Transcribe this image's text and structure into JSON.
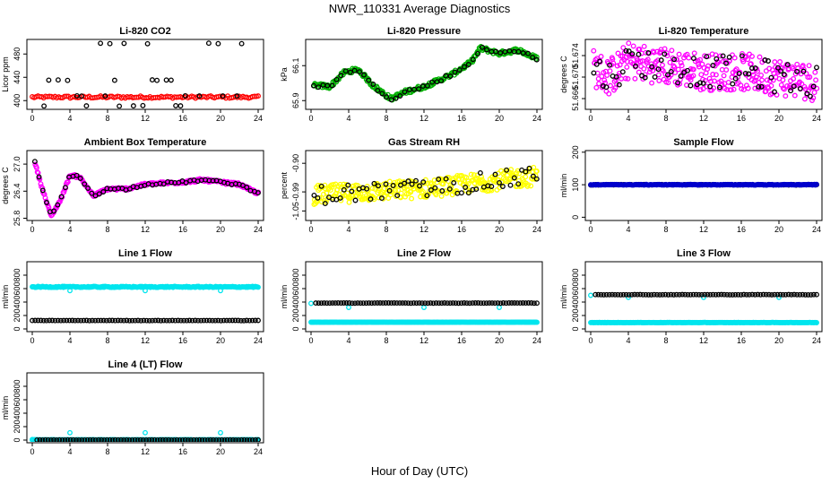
{
  "figure": {
    "title": "NWR_110331  Average Diagnostics",
    "xlabel": "Hour of Day (UTC)"
  },
  "chart_data": [
    {
      "id": "co2",
      "type": "scatter",
      "title": "Li-820 CO2",
      "ylabel": "Licor ppm",
      "xlim": [
        0,
        24
      ],
      "xticks": [
        0,
        4,
        8,
        12,
        16,
        20,
        24
      ],
      "ylim": [
        385,
        505
      ],
      "yticks": [
        400,
        440,
        480
      ],
      "ytick_labels": [
        "400",
        "440",
        "480"
      ],
      "series": [
        {
          "name": "co2-averages",
          "color": "#ff0000",
          "pattern": {
            "kind": "band",
            "from": 0,
            "to": 24,
            "n": 120,
            "center": 406,
            "spread": 2
          }
        },
        {
          "name": "co2-references",
          "color": "#000000",
          "pattern": {
            "kind": "levels",
            "x_step": 0.5,
            "levels": [
              391,
              408,
              435,
              498
            ]
          }
        }
      ]
    },
    {
      "id": "pressure",
      "type": "scatter",
      "title": "Li-820 Pressure",
      "ylabel": "kPa",
      "xlim": [
        0,
        24
      ],
      "xticks": [
        0,
        4,
        8,
        12,
        16,
        20,
        24
      ],
      "ylim": [
        65.85,
        66.25
      ],
      "yticks": [
        65.9,
        66.1
      ],
      "ytick_labels": [
        "65.9",
        "66.1"
      ],
      "series": [
        {
          "name": "pressure-green",
          "color": "#00b000",
          "pattern": {
            "kind": "curve",
            "n": 260,
            "jitter": 0.012,
            "pts": [
              [
                0,
                65.99
              ],
              [
                2,
                65.98
              ],
              [
                3.5,
                66.06
              ],
              [
                5,
                66.08
              ],
              [
                6.5,
                65.99
              ],
              [
                8.5,
                65.91
              ],
              [
                10,
                65.95
              ],
              [
                12,
                65.98
              ],
              [
                15,
                66.05
              ],
              [
                17,
                66.12
              ],
              [
                18,
                66.2
              ],
              [
                20,
                66.17
              ],
              [
                22,
                66.19
              ],
              [
                24,
                66.14
              ]
            ]
          }
        },
        {
          "name": "pressure-black",
          "color": "#000000",
          "pattern": {
            "kind": "curve",
            "n": 50,
            "jitter": 0.01,
            "pts": [
              [
                0,
                65.99
              ],
              [
                2,
                65.98
              ],
              [
                3.5,
                66.06
              ],
              [
                5,
                66.08
              ],
              [
                6.5,
                65.99
              ],
              [
                8.5,
                65.91
              ],
              [
                10,
                65.95
              ],
              [
                12,
                65.98
              ],
              [
                15,
                66.05
              ],
              [
                17,
                66.12
              ],
              [
                18,
                66.2
              ],
              [
                20,
                66.17
              ],
              [
                22,
                66.19
              ],
              [
                24,
                66.14
              ]
            ]
          }
        }
      ]
    },
    {
      "id": "licor-temp",
      "type": "scatter",
      "title": "Li-820 Temperature",
      "ylabel": "degrees C",
      "xlim": [
        0,
        24
      ],
      "xticks": [
        0,
        4,
        8,
        12,
        16,
        20,
        24
      ],
      "ylim": [
        51.664,
        51.677
      ],
      "yticks": [
        51.666,
        51.67,
        51.674
      ],
      "ytick_labels": [
        "51.666",
        "51.670",
        "51.674"
      ],
      "series": [
        {
          "name": "licor-temp-magenta",
          "color": "#ff00ff",
          "pattern": {
            "kind": "curve",
            "n": 330,
            "jitter": 0.0035,
            "pts": [
              [
                0,
                51.672
              ],
              [
                2,
                51.67
              ],
              [
                4,
                51.673
              ],
              [
                8,
                51.672
              ],
              [
                12,
                51.671
              ],
              [
                16,
                51.671
              ],
              [
                20,
                51.67
              ],
              [
                24,
                51.669
              ]
            ]
          }
        },
        {
          "name": "licor-temp-black",
          "color": "#000000",
          "pattern": {
            "kind": "curve",
            "n": 70,
            "jitter": 0.003,
            "pts": [
              [
                0,
                51.672
              ],
              [
                2,
                51.67
              ],
              [
                4,
                51.673
              ],
              [
                8,
                51.672
              ],
              [
                12,
                51.671
              ],
              [
                16,
                51.671
              ],
              [
                20,
                51.67
              ],
              [
                24,
                51.669
              ]
            ]
          }
        }
      ]
    },
    {
      "id": "box-temp",
      "type": "scatter",
      "title": "Ambient Box Temperature",
      "ylabel": "degrees C",
      "xlim": [
        0,
        24
      ],
      "xticks": [
        0,
        4,
        8,
        12,
        16,
        20,
        24
      ],
      "ylim": [
        25.75,
        27.3
      ],
      "yticks": [
        25.8,
        26.4,
        27.0
      ],
      "ytick_labels": [
        "25.8",
        "26.4",
        "27.0"
      ],
      "series": [
        {
          "name": "box-temp-magenta",
          "color": "#ff00ff",
          "pattern": {
            "kind": "curve",
            "n": 280,
            "jitter": 0.03,
            "pts": [
              [
                0,
                27.25
              ],
              [
                1,
                26.5
              ],
              [
                2,
                25.85
              ],
              [
                3,
                26.2
              ],
              [
                4,
                26.75
              ],
              [
                5,
                26.72
              ],
              [
                6.5,
                26.3
              ],
              [
                8,
                26.45
              ],
              [
                10,
                26.45
              ],
              [
                12,
                26.55
              ],
              [
                14,
                26.58
              ],
              [
                16,
                26.6
              ],
              [
                18,
                26.65
              ],
              [
                20,
                26.6
              ],
              [
                22,
                26.55
              ],
              [
                24,
                26.35
              ]
            ]
          }
        },
        {
          "name": "box-temp-black",
          "color": "#000000",
          "pattern": {
            "kind": "curve",
            "n": 60,
            "jitter": 0.025,
            "pts": [
              [
                0,
                27.25
              ],
              [
                1,
                26.5
              ],
              [
                2,
                25.85
              ],
              [
                3,
                26.2
              ],
              [
                4,
                26.75
              ],
              [
                5,
                26.72
              ],
              [
                6.5,
                26.3
              ],
              [
                8,
                26.45
              ],
              [
                10,
                26.45
              ],
              [
                12,
                26.55
              ],
              [
                14,
                26.58
              ],
              [
                16,
                26.6
              ],
              [
                18,
                26.65
              ],
              [
                20,
                26.6
              ],
              [
                22,
                26.55
              ],
              [
                24,
                26.35
              ]
            ]
          }
        }
      ]
    },
    {
      "id": "rh",
      "type": "scatter",
      "title": "Gas Stream RH",
      "ylabel": "percent",
      "xlim": [
        0,
        24
      ],
      "xticks": [
        0,
        4,
        8,
        12,
        16,
        20,
        24
      ],
      "ylim": [
        -1.08,
        -0.86
      ],
      "yticks": [
        -1.05,
        -0.99,
        -0.9
      ],
      "ytick_labels": [
        "-1.05",
        "-0.99",
        "-0.90"
      ],
      "series": [
        {
          "name": "rh-yellow",
          "color": "#ffff00",
          "pattern": {
            "kind": "curve",
            "n": 330,
            "jitter": 0.03,
            "pts": [
              [
                0,
                -1.0
              ],
              [
                6,
                -0.99
              ],
              [
                12,
                -0.98
              ],
              [
                18,
                -0.96
              ],
              [
                24,
                -0.94
              ]
            ]
          }
        },
        {
          "name": "rh-black",
          "color": "#000000",
          "pattern": {
            "kind": "curve",
            "n": 60,
            "jitter": 0.03,
            "pts": [
              [
                0,
                -1.0
              ],
              [
                6,
                -0.99
              ],
              [
                12,
                -0.98
              ],
              [
                18,
                -0.96
              ],
              [
                24,
                -0.94
              ]
            ]
          }
        }
      ]
    },
    {
      "id": "sample-flow",
      "type": "scatter",
      "title": "Sample Flow",
      "ylabel": "ml/min",
      "xlim": [
        0,
        24
      ],
      "xticks": [
        0,
        4,
        8,
        12,
        16,
        20,
        24
      ],
      "ylim": [
        -10,
        205
      ],
      "yticks": [
        0,
        100,
        200
      ],
      "ytick_labels": [
        "0",
        "100",
        "200"
      ],
      "series": [
        {
          "name": "sample-flow-black",
          "color": "#000000",
          "pattern": {
            "kind": "band",
            "from": 0,
            "to": 24,
            "n": 90,
            "center": 100,
            "spread": 1
          }
        },
        {
          "name": "sample-flow-blue",
          "color": "#0000cc",
          "pattern": {
            "kind": "band",
            "from": 0,
            "to": 24,
            "n": 220,
            "center": 100,
            "spread": 1
          }
        }
      ]
    },
    {
      "id": "line1",
      "type": "scatter",
      "title": "Line 1 Flow",
      "ylabel": "ml/min",
      "xlim": [
        0,
        24
      ],
      "xticks": [
        0,
        4,
        8,
        12,
        16,
        20,
        24
      ],
      "ylim": [
        -40,
        1000
      ],
      "yticks": [
        0,
        200,
        400,
        600,
        800
      ],
      "ytick_labels": [
        "0",
        "200",
        "400",
        "600",
        "800"
      ],
      "series": [
        {
          "name": "line1-cyan",
          "color": "#00e5ee",
          "pattern": {
            "kind": "band",
            "from": 0,
            "to": 24,
            "n": 240,
            "center": 625,
            "spread": 8
          }
        },
        {
          "name": "line1-cyan-dips",
          "color": "#00e5ee",
          "pattern": {
            "kind": "points",
            "x": [
              4,
              12,
              20
            ],
            "y": [
              570,
              570,
              570
            ]
          }
        },
        {
          "name": "line1-black",
          "color": "#000000",
          "pattern": {
            "kind": "band",
            "from": 0,
            "to": 24,
            "n": 80,
            "center": 125,
            "spread": 2
          }
        }
      ]
    },
    {
      "id": "line2",
      "type": "scatter",
      "title": "Line 2 Flow",
      "ylabel": "ml/min",
      "xlim": [
        0,
        24
      ],
      "xticks": [
        0,
        4,
        8,
        12,
        16,
        20,
        24
      ],
      "ylim": [
        -40,
        1000
      ],
      "yticks": [
        0,
        200,
        400,
        600,
        800
      ],
      "ytick_labels": [
        "0",
        "200",
        "400",
        "600",
        "800"
      ],
      "series": [
        {
          "name": "line2-cyan",
          "color": "#00e5ee",
          "pattern": {
            "kind": "band",
            "from": 0,
            "to": 24,
            "n": 240,
            "center": 100,
            "spread": 2
          }
        },
        {
          "name": "line2-cyan-dips",
          "color": "#00e5ee",
          "pattern": {
            "kind": "points",
            "x": [
              0,
              4,
              12,
              20
            ],
            "y": [
              380,
              320,
              320,
              320
            ]
          }
        },
        {
          "name": "line2-black",
          "color": "#000000",
          "pattern": {
            "kind": "band",
            "from": 0.5,
            "to": 24,
            "n": 80,
            "center": 385,
            "spread": 2
          }
        }
      ]
    },
    {
      "id": "line3",
      "type": "scatter",
      "title": "Line 3 Flow",
      "ylabel": "ml/min",
      "xlim": [
        0,
        24
      ],
      "xticks": [
        0,
        4,
        8,
        12,
        16,
        20,
        24
      ],
      "ylim": [
        -40,
        1000
      ],
      "yticks": [
        0,
        200,
        400,
        600,
        800
      ],
      "ytick_labels": [
        "0",
        "200",
        "400",
        "600",
        "800"
      ],
      "series": [
        {
          "name": "line3-cyan",
          "color": "#00e5ee",
          "pattern": {
            "kind": "band",
            "from": 0,
            "to": 24,
            "n": 240,
            "center": 95,
            "spread": 2
          }
        },
        {
          "name": "line3-cyan-dips",
          "color": "#00e5ee",
          "pattern": {
            "kind": "points",
            "x": [
              0,
              4,
              12,
              20
            ],
            "y": [
              500,
              470,
              470,
              470
            ]
          }
        },
        {
          "name": "line3-black",
          "color": "#000000",
          "pattern": {
            "kind": "band",
            "from": 0.5,
            "to": 24,
            "n": 80,
            "center": 510,
            "spread": 2
          }
        }
      ]
    },
    {
      "id": "line4",
      "type": "scatter",
      "title": "Line 4 (LT) Flow",
      "ylabel": "ml/min",
      "xlim": [
        0,
        24
      ],
      "xticks": [
        0,
        4,
        8,
        12,
        16,
        20,
        24
      ],
      "ylim": [
        -40,
        1000
      ],
      "yticks": [
        0,
        200,
        400,
        600,
        800
      ],
      "ytick_labels": [
        "0",
        "200",
        "400",
        "600",
        "800"
      ],
      "series": [
        {
          "name": "line4-cyan",
          "color": "#00e5ee",
          "pattern": {
            "kind": "band",
            "from": 0,
            "to": 24,
            "n": 200,
            "center": 5,
            "spread": 2
          }
        },
        {
          "name": "line4-cyan-spikes",
          "color": "#00e5ee",
          "pattern": {
            "kind": "points",
            "x": [
              0,
              4,
              12,
              20
            ],
            "y": [
              10,
              110,
              110,
              110
            ]
          }
        },
        {
          "name": "line4-black",
          "color": "#000000",
          "pattern": {
            "kind": "band",
            "from": 0.5,
            "to": 24,
            "n": 80,
            "center": 2,
            "spread": 1
          }
        }
      ]
    }
  ]
}
